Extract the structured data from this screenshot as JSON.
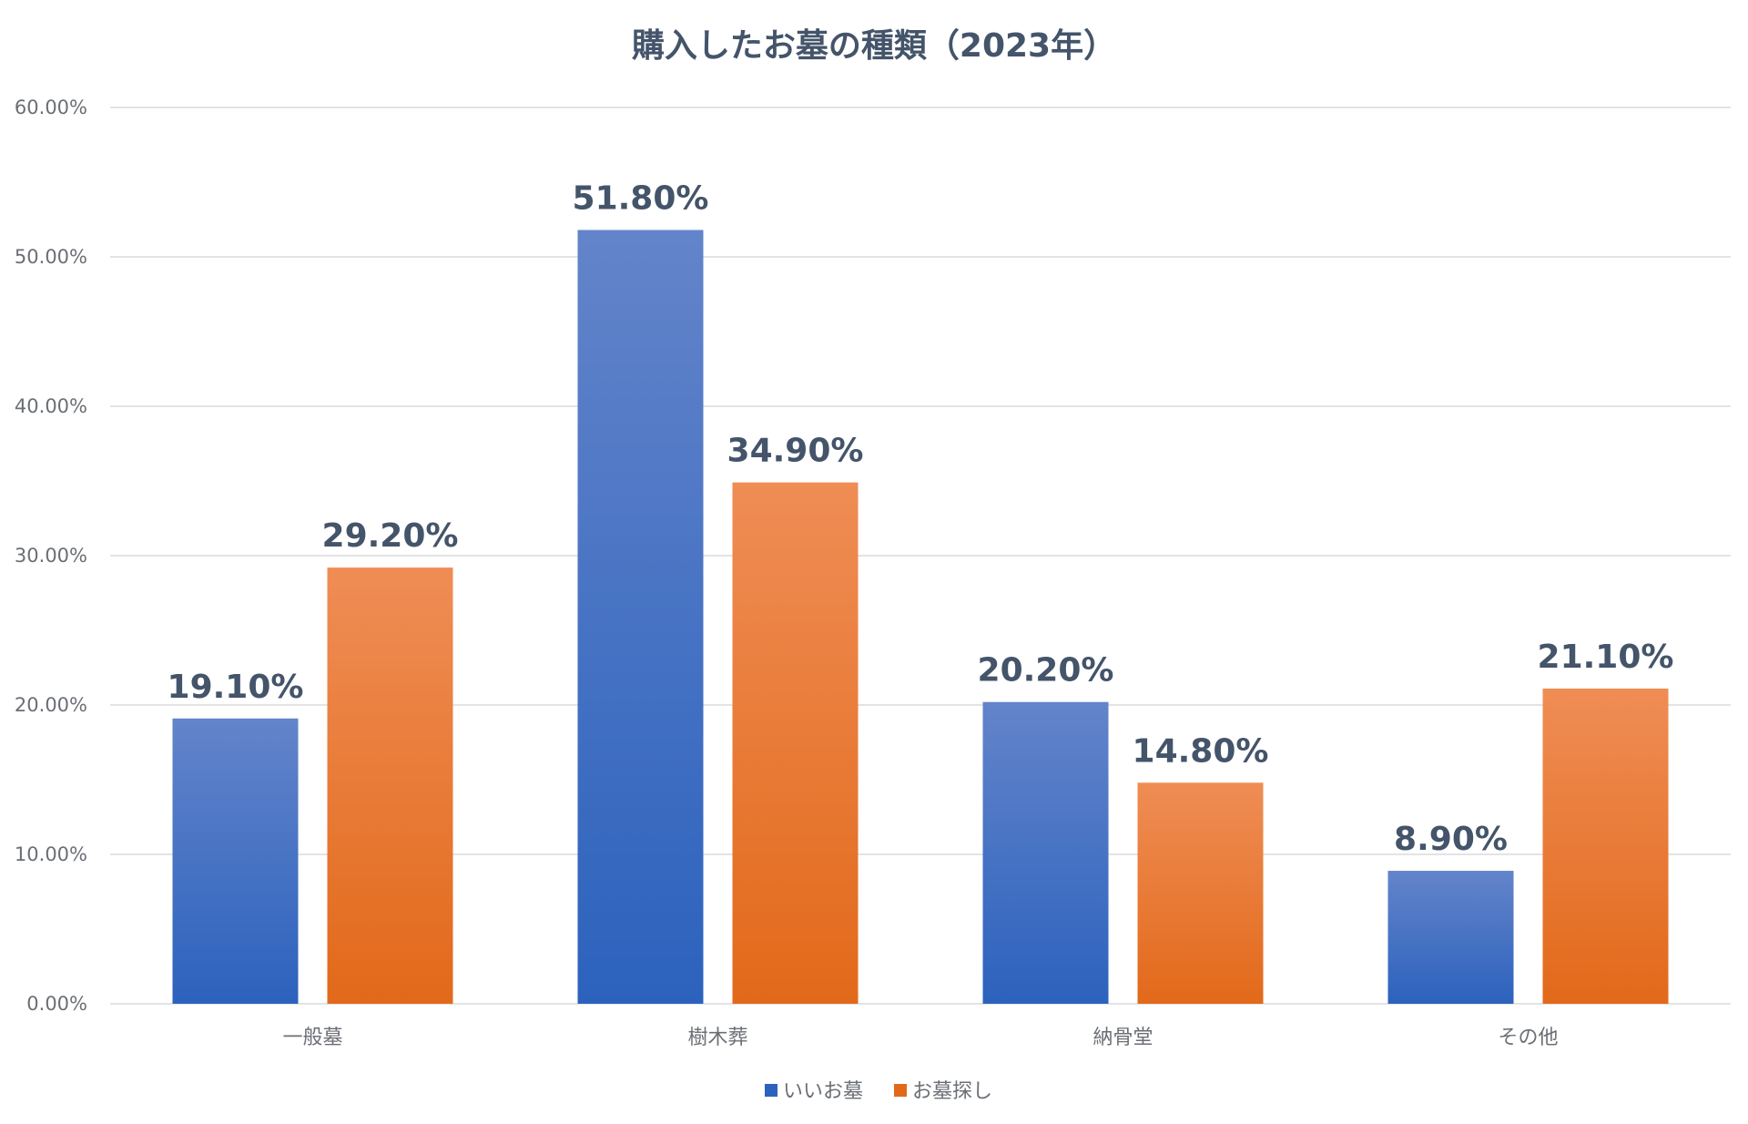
{
  "chart_data": {
    "type": "bar",
    "title": "購入したお墓の種類（2023年）",
    "categories": [
      "一般墓",
      "樹木葬",
      "納骨堂",
      "その他"
    ],
    "series": [
      {
        "name": "いいお墓",
        "values": [
          19.1,
          51.8,
          20.2,
          8.9
        ],
        "labels": [
          "19.10%",
          "51.80%",
          "20.20%",
          "8.90%"
        ],
        "color_top": "#6384ca",
        "color_bottom": "#2c62bd"
      },
      {
        "name": "お墓探し",
        "values": [
          29.2,
          34.9,
          14.8,
          21.1
        ],
        "labels": [
          "29.20%",
          "34.90%",
          "14.80%",
          "21.10%"
        ],
        "color_top": "#ef8d55",
        "color_bottom": "#e2691a"
      }
    ],
    "yticks": [
      "0.00%",
      "10.00%",
      "20.00%",
      "30.00%",
      "40.00%",
      "50.00%",
      "60.00%"
    ],
    "ylim": [
      0,
      60
    ],
    "xlabel": "",
    "ylabel": "",
    "grid": true,
    "legend_position": "bottom"
  }
}
